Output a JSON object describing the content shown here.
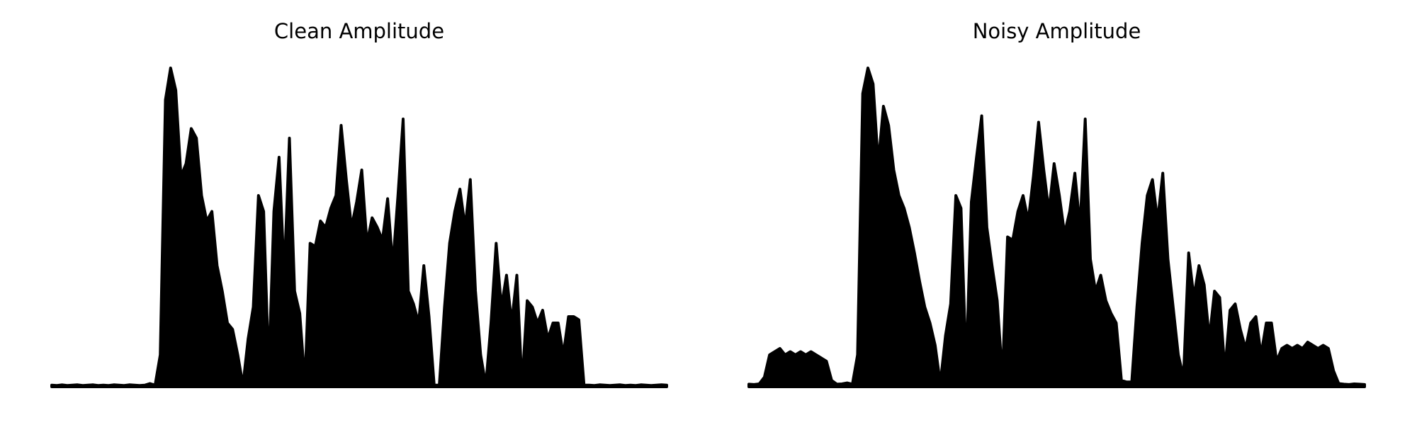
{
  "chart_data": [
    {
      "type": "area",
      "title": "Clean Amplitude",
      "color": "#000000",
      "ylim": [
        0,
        1
      ],
      "values": [
        0.005,
        0.004,
        0.006,
        0.004,
        0.005,
        0.006,
        0.004,
        0.005,
        0.006,
        0.004,
        0.005,
        0.004,
        0.006,
        0.005,
        0.004,
        0.006,
        0.005,
        0.004,
        0.005,
        0.01,
        0.005,
        0.1,
        0.9,
        1.0,
        0.93,
        0.66,
        0.7,
        0.81,
        0.78,
        0.6,
        0.52,
        0.55,
        0.38,
        0.3,
        0.2,
        0.18,
        0.1,
        0.005,
        0.15,
        0.25,
        0.6,
        0.55,
        0.05,
        0.55,
        0.72,
        0.35,
        0.78,
        0.3,
        0.23,
        0.01,
        0.45,
        0.44,
        0.52,
        0.5,
        0.56,
        0.6,
        0.82,
        0.65,
        0.5,
        0.58,
        0.68,
        0.45,
        0.53,
        0.5,
        0.46,
        0.59,
        0.38,
        0.6,
        0.84,
        0.3,
        0.26,
        0.2,
        0.38,
        0.22,
        0.005,
        0.005,
        0.25,
        0.45,
        0.55,
        0.62,
        0.5,
        0.65,
        0.3,
        0.1,
        0.005,
        0.2,
        0.45,
        0.25,
        0.35,
        0.2,
        0.35,
        0.005,
        0.27,
        0.25,
        0.2,
        0.24,
        0.15,
        0.2,
        0.2,
        0.1,
        0.22,
        0.22,
        0.21,
        0.005,
        0.005,
        0.004,
        0.006,
        0.005,
        0.004,
        0.005,
        0.006,
        0.004,
        0.005,
        0.004,
        0.006,
        0.005,
        0.004,
        0.005,
        0.006,
        0.005
      ]
    },
    {
      "type": "area",
      "title": "Noisy Amplitude",
      "color": "#000000",
      "ylim": [
        0,
        1
      ],
      "values": [
        0.008,
        0.007,
        0.009,
        0.03,
        0.1,
        0.11,
        0.12,
        0.1,
        0.11,
        0.1,
        0.11,
        0.1,
        0.11,
        0.1,
        0.09,
        0.08,
        0.02,
        0.008,
        0.009,
        0.012,
        0.008,
        0.1,
        0.92,
        1.0,
        0.95,
        0.7,
        0.88,
        0.82,
        0.68,
        0.6,
        0.56,
        0.5,
        0.42,
        0.33,
        0.25,
        0.2,
        0.13,
        0.01,
        0.16,
        0.26,
        0.6,
        0.56,
        0.06,
        0.58,
        0.72,
        0.85,
        0.5,
        0.38,
        0.27,
        0.03,
        0.47,
        0.46,
        0.55,
        0.6,
        0.52,
        0.66,
        0.83,
        0.68,
        0.55,
        0.7,
        0.6,
        0.48,
        0.55,
        0.67,
        0.5,
        0.84,
        0.4,
        0.3,
        0.35,
        0.27,
        0.23,
        0.2,
        0.02,
        0.015,
        0.015,
        0.25,
        0.45,
        0.6,
        0.65,
        0.52,
        0.67,
        0.4,
        0.25,
        0.1,
        0.03,
        0.42,
        0.28,
        0.38,
        0.32,
        0.15,
        0.3,
        0.28,
        0.05,
        0.24,
        0.26,
        0.18,
        0.12,
        0.2,
        0.22,
        0.1,
        0.2,
        0.2,
        0.08,
        0.12,
        0.13,
        0.12,
        0.13,
        0.12,
        0.14,
        0.13,
        0.12,
        0.13,
        0.12,
        0.05,
        0.01,
        0.008,
        0.007,
        0.009,
        0.008,
        0.007
      ]
    }
  ]
}
